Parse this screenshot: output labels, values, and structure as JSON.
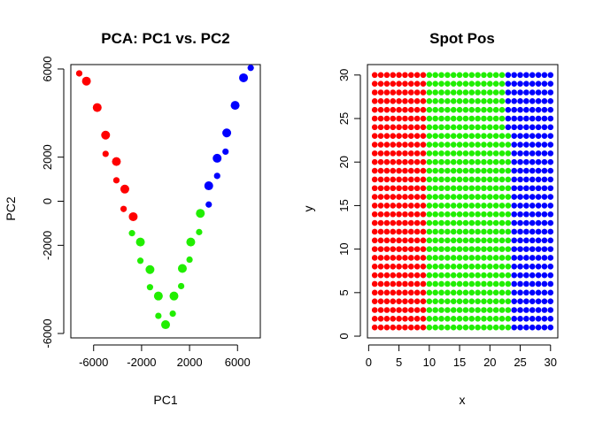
{
  "colors": {
    "red": "#ff0000",
    "green": "#21ee00",
    "blue": "#0000ff"
  },
  "chart_data": [
    {
      "type": "scatter",
      "title": "PCA: PC1 vs. PC2",
      "xlabel": "PC1",
      "ylabel": "PC2",
      "xlim": [
        -7900,
        7900
      ],
      "ylim": [
        -6200,
        6200
      ],
      "xticks": [
        -6000,
        -2000,
        2000,
        6000
      ],
      "xtick_labels": [
        "-6000",
        "-2000",
        "2000",
        "6000"
      ],
      "yticks": [
        -6000,
        -2000,
        2000,
        6000
      ],
      "ytick_labels": [
        "-6000",
        "-2000",
        "2000",
        "6000"
      ],
      "yticks_minor": [
        0
      ],
      "ytick_minor_labels": [
        "0"
      ],
      "series": [
        {
          "color": "red",
          "points": [
            {
              "x": -7200,
              "y": 5800,
              "s": "small"
            },
            {
              "x": -6600,
              "y": 5450,
              "s": "big"
            },
            {
              "x": -5700,
              "y": 4250,
              "s": "big"
            },
            {
              "x": -5000,
              "y": 3000,
              "s": "big"
            },
            {
              "x": -5000,
              "y": 2150,
              "s": "small"
            },
            {
              "x": -4100,
              "y": 1800,
              "s": "big"
            },
            {
              "x": -4100,
              "y": 950,
              "s": "small"
            },
            {
              "x": -3400,
              "y": 550,
              "s": "big"
            },
            {
              "x": -3500,
              "y": -350,
              "s": "small"
            },
            {
              "x": -2700,
              "y": -700,
              "s": "big"
            }
          ]
        },
        {
          "color": "green",
          "points": [
            {
              "x": -2800,
              "y": -1450,
              "s": "small"
            },
            {
              "x": -2100,
              "y": -1850,
              "s": "big"
            },
            {
              "x": -2100,
              "y": -2700,
              "s": "small"
            },
            {
              "x": -1300,
              "y": -3100,
              "s": "big"
            },
            {
              "x": -1300,
              "y": -3900,
              "s": "small"
            },
            {
              "x": -600,
              "y": -4300,
              "s": "big"
            },
            {
              "x": -600,
              "y": -5200,
              "s": "small"
            },
            {
              "x": 0,
              "y": -5600,
              "s": "big"
            },
            {
              "x": 600,
              "y": -5100,
              "s": "small"
            },
            {
              "x": 700,
              "y": -4300,
              "s": "big"
            },
            {
              "x": 1300,
              "y": -3850,
              "s": "small"
            },
            {
              "x": 1400,
              "y": -3050,
              "s": "big"
            },
            {
              "x": 2000,
              "y": -2650,
              "s": "small"
            },
            {
              "x": 2100,
              "y": -1850,
              "s": "big"
            },
            {
              "x": 2800,
              "y": -1400,
              "s": "small"
            },
            {
              "x": 2900,
              "y": -550,
              "s": "big"
            }
          ]
        },
        {
          "color": "blue",
          "points": [
            {
              "x": 3600,
              "y": -150,
              "s": "small"
            },
            {
              "x": 3600,
              "y": 700,
              "s": "big"
            },
            {
              "x": 4300,
              "y": 1150,
              "s": "small"
            },
            {
              "x": 4300,
              "y": 1950,
              "s": "big"
            },
            {
              "x": 5000,
              "y": 2250,
              "s": "small"
            },
            {
              "x": 5100,
              "y": 3100,
              "s": "big"
            },
            {
              "x": 5800,
              "y": 4350,
              "s": "big"
            },
            {
              "x": 6500,
              "y": 5600,
              "s": "big"
            },
            {
              "x": 7100,
              "y": 6050,
              "s": "small"
            }
          ]
        }
      ]
    },
    {
      "type": "scatter",
      "title": "Spot Pos",
      "xlabel": "x",
      "ylabel": "y",
      "xlim": [
        -0.2,
        31.2
      ],
      "ylim": [
        -0.2,
        31.2
      ],
      "xticks": [
        0,
        5,
        10,
        15,
        20,
        25,
        30
      ],
      "xtick_labels": [
        "0",
        "5",
        "10",
        "15",
        "20",
        "25",
        "30"
      ],
      "yticks": [
        0,
        5,
        10,
        15,
        20,
        25,
        30
      ],
      "ytick_labels": [
        "0",
        "5",
        "10",
        "15",
        "20",
        "25",
        "30"
      ],
      "grid_x": [
        1,
        30
      ],
      "grid_y": [
        1,
        30
      ],
      "regions": [
        {
          "color": "red",
          "rule": "x <= 9"
        },
        {
          "color": "green",
          "rule": "9 < x <= 22, or 22 < x <= 23 and y <= 23"
        },
        {
          "color": "blue",
          "rule": "x >= 24, or x = 23 and y >= 24"
        }
      ]
    }
  ]
}
